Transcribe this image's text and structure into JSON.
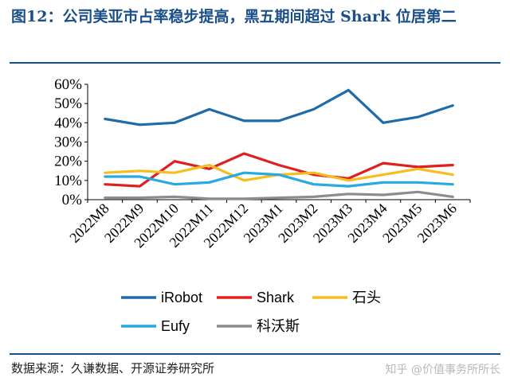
{
  "header": {
    "title": "图12：公司美亚市占率稳步提高，黑五期间超过 Shark 位居第二"
  },
  "footer": {
    "source": "数据来源：久谦数据、开源证券研究所",
    "watermark": "知乎 @价值事务所所长"
  },
  "colors": {
    "title": "#1a4f8a",
    "rules": "#1a4f8a"
  },
  "chart_data": {
    "type": "line",
    "title": "",
    "xlabel": "",
    "ylabel": "",
    "categories": [
      "2022M8",
      "2022M9",
      "2022M10",
      "2022M11",
      "2022M12",
      "2023M1",
      "2023M2",
      "2023M3",
      "2023M4",
      "2023M5",
      "2023M6"
    ],
    "yticks": [
      "0%",
      "10%",
      "20%",
      "30%",
      "40%",
      "50%",
      "60%"
    ],
    "ylim": [
      0,
      60
    ],
    "grid": false,
    "legend_position": "bottom",
    "series": [
      {
        "name": "iRobot",
        "color": "#1f6aa8",
        "values": [
          42,
          39,
          40,
          47,
          41,
          41,
          47,
          57,
          40,
          43,
          49
        ]
      },
      {
        "name": "Shark",
        "color": "#e02020",
        "values": [
          8,
          7,
          20,
          16,
          24,
          18,
          13,
          11,
          19,
          17,
          18
        ]
      },
      {
        "name": "石头",
        "color": "#f5be1e",
        "values": [
          14,
          15,
          14,
          18,
          10,
          13,
          14,
          10,
          13,
          16,
          13
        ]
      },
      {
        "name": "Eufy",
        "color": "#27a9e1",
        "values": [
          12,
          12,
          8,
          9,
          14,
          13,
          8,
          7,
          9,
          9,
          8
        ]
      },
      {
        "name": "科沃斯",
        "color": "#8c8c8c",
        "values": [
          1,
          1,
          1.5,
          0.5,
          0.5,
          1,
          1.5,
          3,
          2.5,
          4,
          1.5
        ]
      }
    ]
  }
}
